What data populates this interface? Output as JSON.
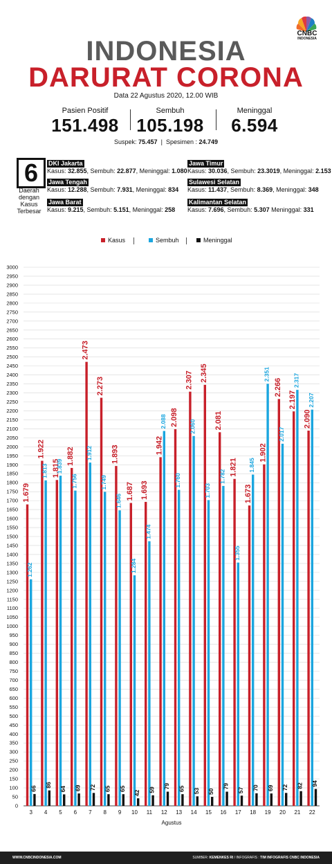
{
  "header": {
    "logo_text": "CNBC",
    "logo_subtext": "INDONESIA",
    "title_line1": "INDONESIA",
    "title_line2": "DARURAT CORONA",
    "date_text": "Data 22 Agustus 2020, 12.00 WIB",
    "colors": {
      "title_gray": "#5a5a5a",
      "title_red": "#c8202a"
    }
  },
  "stats": [
    {
      "label": "Pasien Positif",
      "value": "151.498"
    },
    {
      "label": "Sembuh",
      "value": "105.198"
    },
    {
      "label": "Meninggal",
      "value": "6.594"
    }
  ],
  "subline": {
    "suspek_label": "Suspek: ",
    "suspek_value": "75.457",
    "separator": "|",
    "spesimen_label": "Spesimen : ",
    "spesimen_value": "24.749"
  },
  "regions_box": {
    "number": "6",
    "caption_lines": [
      "Daerah",
      "dengan",
      "Kasus",
      "Terbesar"
    ]
  },
  "regions": [
    {
      "name": "DKI Jakarta",
      "k_label": "Kasus: ",
      "k": "32.855",
      "s_label": ", Sembuh: ",
      "s": "22.877",
      "m_label": ", Meninggal: ",
      "m": "1.080"
    },
    {
      "name": "Jawa Timur",
      "k_label": "Kasus: ",
      "k": "30.036",
      "s_label": ", Sembuh: ",
      "s": "23.3019",
      "m_label": ", Meninggal: ",
      "m": "2.153"
    },
    {
      "name": "Jawa Tengah",
      "k_label": "Kasus: ",
      "k": "12.288",
      "s_label": ", Sembuh: ",
      "s": "7.931",
      "m_label": ",  Meninggal: ",
      "m": "834"
    },
    {
      "name": "Sulawesi Selatan",
      "k_label": "Kasus: ",
      "k": "11.437",
      "s_label": ", Sembuh: ",
      "s": "8.369",
      "m_label": ", Meninggal: ",
      "m": "348"
    },
    {
      "name": "Jawa Barat",
      "k_label": "Kasus: ",
      "k": "9.215",
      "s_label": ", Sembuh: ",
      "s": "5.151",
      "m_label": ", Meninggal: ",
      "m": "258"
    },
    {
      "name": "Kalimantan Selatan",
      "k_label": "Kasus: ",
      "k": "7.696",
      "s_label": ", Sembuh: ",
      "s": "5.307",
      "m_label": " Meninggal: ",
      "m": "331"
    }
  ],
  "legend": [
    {
      "label": "Kasus",
      "color": "#c8202a"
    },
    {
      "label": "Sembuh",
      "color": "#1ba6df"
    },
    {
      "label": "Meninggal",
      "color": "#111111"
    }
  ],
  "chart_data": {
    "type": "bar",
    "categories": [
      "3",
      "4",
      "5",
      "6",
      "7",
      "8",
      "9",
      "10",
      "11",
      "12",
      "13",
      "14",
      "15",
      "16",
      "17",
      "18",
      "19",
      "20",
      "21",
      "22"
    ],
    "series": [
      {
        "name": "Kasus",
        "color": "#c8202a",
        "values": [
          1679,
          1922,
          1815,
          1882,
          2473,
          2273,
          1893,
          1687,
          1693,
          1942,
          2098,
          2307,
          2345,
          2081,
          1821,
          1673,
          1902,
          2266,
          2197,
          2090
        ],
        "labels": [
          "1.679",
          "1.922",
          "1.815",
          "1.882",
          "2.473",
          "2.273",
          "1.893",
          "1.687",
          "1.693",
          "1.942",
          "2.098",
          "2.307",
          "2.345",
          "2.081",
          "1.821",
          "1.673",
          "1.902",
          "2.266",
          "2.197",
          "2.090"
        ]
      },
      {
        "name": "Sembuh",
        "color": "#1ba6df",
        "values": [
          1262,
          1813,
          1839,
          1756,
          1912,
          1749,
          1646,
          1284,
          1474,
          2088,
          1760,
          2060,
          1703,
          1782,
          1355,
          1845,
          2351,
          2017,
          2317,
          2207
        ],
        "labels": [
          "1.262",
          "1.813",
          "1.839",
          "1.756",
          "1.912",
          "1.749",
          "1.646",
          "1.284",
          "1.474",
          "2.088",
          "1.760",
          "2.060",
          "1.703",
          "1.782",
          "1.355",
          "1.845",
          "2.351",
          "2.017",
          "2.317",
          "2.207"
        ]
      },
      {
        "name": "Meninggal",
        "color": "#111111",
        "values": [
          66,
          86,
          64,
          69,
          72,
          65,
          65,
          42,
          59,
          79,
          65,
          53,
          50,
          79,
          57,
          70,
          69,
          72,
          82,
          94
        ],
        "labels": [
          "66",
          "86",
          "64",
          "69",
          "72",
          "65",
          "65",
          "42",
          "59",
          "79",
          "65",
          "53",
          "50",
          "79",
          "57",
          "70",
          "69",
          "72",
          "82",
          "94"
        ]
      }
    ],
    "xlabel": "Agustus",
    "ylabel": "",
    "ylim": [
      0,
      3000
    ],
    "ytick_step": 50,
    "grid": true
  },
  "footer": {
    "left": "WWW.CNBCINDONESIA.COM",
    "source_label": "SUMBER: ",
    "source_value": "KEMENKES RI",
    "infografis_label": " / INFOGRAFIS : ",
    "infografis_value": "TIM INFOGRAFIS CNBC INDONESIA"
  }
}
